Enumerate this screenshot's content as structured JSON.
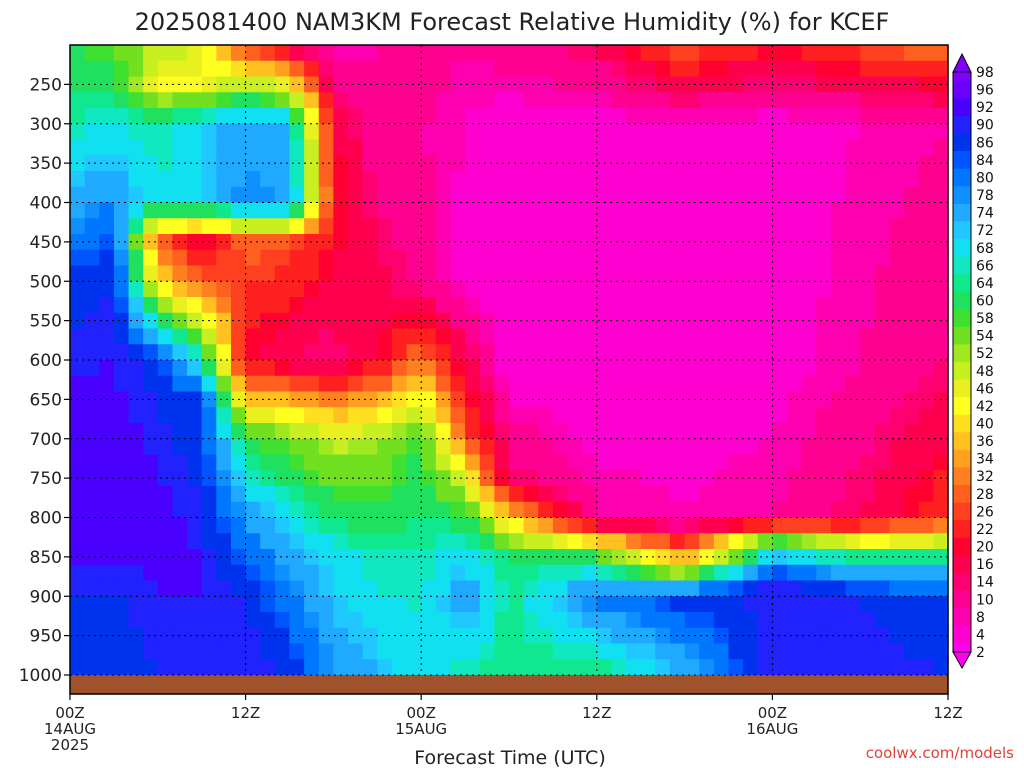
{
  "chart_data": {
    "type": "heatmap",
    "title": "2025081400 NAM3KM Forecast Relative Humidity (%) for KCEF",
    "xlabel": "Forecast Time (UTC)",
    "ylabel": "",
    "watermark": "coolwx.com/models",
    "y_ticks": [
      250,
      300,
      350,
      400,
      450,
      500,
      550,
      600,
      650,
      700,
      750,
      800,
      850,
      900,
      950,
      1000
    ],
    "y_range": [
      1000,
      200
    ],
    "x_range_hours": [
      0,
      60
    ],
    "x_ticks": [
      {
        "hour": 0,
        "lines": [
          "00Z",
          "14AUG",
          "2025"
        ]
      },
      {
        "hour": 12,
        "lines": [
          "12Z"
        ]
      },
      {
        "hour": 24,
        "lines": [
          "00Z",
          "15AUG"
        ]
      },
      {
        "hour": 36,
        "lines": [
          "12Z"
        ]
      },
      {
        "hour": 48,
        "lines": [
          "00Z",
          "16AUG"
        ]
      },
      {
        "hour": 60,
        "lines": [
          "12Z"
        ]
      }
    ],
    "grid": true,
    "colorbar_labels": [
      98,
      96,
      92,
      90,
      86,
      84,
      80,
      78,
      74,
      72,
      68,
      66,
      64,
      60,
      58,
      54,
      52,
      48,
      46,
      42,
      40,
      36,
      34,
      32,
      28,
      26,
      22,
      20,
      16,
      14,
      10,
      8,
      4,
      2
    ],
    "colorbar_colors": [
      "#7f00ff",
      "#6a00ff",
      "#4a00ff",
      "#2222ff",
      "#0033ee",
      "#0055ff",
      "#0077ff",
      "#1090ff",
      "#20aaff",
      "#20c8ff",
      "#10e0f0",
      "#10e8c0",
      "#10e890",
      "#20e060",
      "#40e030",
      "#70e020",
      "#a0e820",
      "#c8f020",
      "#e8f020",
      "#ffff20",
      "#ffe020",
      "#ffc020",
      "#ffa020",
      "#ff8020",
      "#ff6020",
      "#ff4020",
      "#ff2020",
      "#ff0030",
      "#ff0050",
      "#ff0070",
      "#ff0090",
      "#ff00b0",
      "#ff00d0",
      "#ff00f0"
    ],
    "rh_profiles": [
      {
        "hour": 0,
        "rh": [
          [
            200,
            60
          ],
          [
            300,
            66
          ],
          [
            400,
            74
          ],
          [
            500,
            88
          ],
          [
            700,
            94
          ],
          [
            850,
            92
          ],
          [
            1000,
            86
          ]
        ]
      },
      {
        "hour": 3,
        "rh": [
          [
            200,
            58
          ],
          [
            300,
            68
          ],
          [
            400,
            80
          ],
          [
            500,
            90
          ],
          [
            700,
            94
          ],
          [
            850,
            92
          ],
          [
            1000,
            86
          ]
        ]
      },
      {
        "hour": 6,
        "rh": [
          [
            200,
            52
          ],
          [
            250,
            44
          ],
          [
            300,
            66
          ],
          [
            400,
            68
          ],
          [
            450,
            30
          ],
          [
            500,
            40
          ],
          [
            600,
            88
          ],
          [
            800,
            94
          ],
          [
            1000,
            90
          ]
        ]
      },
      {
        "hour": 9,
        "rh": [
          [
            200,
            46
          ],
          [
            250,
            46
          ],
          [
            300,
            72
          ],
          [
            400,
            72
          ],
          [
            450,
            20
          ],
          [
            500,
            30
          ],
          [
            650,
            86
          ],
          [
            850,
            92
          ],
          [
            1000,
            92
          ]
        ]
      },
      {
        "hour": 12,
        "rh": [
          [
            200,
            26
          ],
          [
            300,
            76
          ],
          [
            400,
            80
          ],
          [
            450,
            30
          ],
          [
            600,
            20
          ],
          [
            700,
            60
          ],
          [
            800,
            78
          ],
          [
            900,
            90
          ],
          [
            1000,
            92
          ]
        ]
      },
      {
        "hour": 15,
        "rh": [
          [
            200,
            16
          ],
          [
            300,
            74
          ],
          [
            400,
            78
          ],
          [
            450,
            28
          ],
          [
            600,
            16
          ],
          [
            700,
            56
          ],
          [
            850,
            76
          ],
          [
            1000,
            90
          ]
        ]
      },
      {
        "hour": 18,
        "rh": [
          [
            200,
            8
          ],
          [
            300,
            20
          ],
          [
            400,
            24
          ],
          [
            600,
            14
          ],
          [
            700,
            50
          ],
          [
            850,
            70
          ],
          [
            1000,
            78
          ]
        ]
      },
      {
        "hour": 21,
        "rh": [
          [
            200,
            10
          ],
          [
            300,
            10
          ],
          [
            450,
            16
          ],
          [
            600,
            20
          ],
          [
            700,
            52
          ],
          [
            850,
            66
          ],
          [
            1000,
            74
          ]
        ]
      },
      {
        "hour": 24,
        "rh": [
          [
            200,
            14
          ],
          [
            300,
            10
          ],
          [
            500,
            12
          ],
          [
            600,
            32
          ],
          [
            700,
            60
          ],
          [
            850,
            66
          ],
          [
            1000,
            70
          ]
        ]
      },
      {
        "hour": 27,
        "rh": [
          [
            200,
            10
          ],
          [
            300,
            8
          ],
          [
            500,
            6
          ],
          [
            700,
            30
          ],
          [
            800,
            62
          ],
          [
            900,
            78
          ],
          [
            1000,
            66
          ]
        ]
      },
      {
        "hour": 30,
        "rh": [
          [
            200,
            12
          ],
          [
            300,
            6
          ],
          [
            600,
            4
          ],
          [
            750,
            16
          ],
          [
            850,
            64
          ],
          [
            1000,
            64
          ]
        ]
      },
      {
        "hour": 36,
        "rh": [
          [
            200,
            16
          ],
          [
            300,
            6
          ],
          [
            600,
            4
          ],
          [
            800,
            10
          ],
          [
            850,
            60
          ],
          [
            900,
            82
          ],
          [
            1000,
            62
          ]
        ]
      },
      {
        "hour": 42,
        "rh": [
          [
            200,
            30
          ],
          [
            300,
            8
          ],
          [
            600,
            6
          ],
          [
            800,
            8
          ],
          [
            860,
            40
          ],
          [
            900,
            88
          ],
          [
            1000,
            74
          ]
        ]
      },
      {
        "hour": 48,
        "rh": [
          [
            200,
            22
          ],
          [
            300,
            6
          ],
          [
            600,
            6
          ],
          [
            800,
            10
          ],
          [
            830,
            60
          ],
          [
            880,
            92
          ],
          [
            1000,
            92
          ]
        ]
      },
      {
        "hour": 54,
        "rh": [
          [
            200,
            28
          ],
          [
            300,
            8
          ],
          [
            600,
            10
          ],
          [
            800,
            16
          ],
          [
            850,
            64
          ],
          [
            900,
            90
          ],
          [
            1000,
            92
          ]
        ]
      },
      {
        "hour": 60,
        "rh": [
          [
            200,
            32
          ],
          [
            300,
            10
          ],
          [
            600,
            14
          ],
          [
            800,
            26
          ],
          [
            860,
            72
          ],
          [
            900,
            86
          ],
          [
            1000,
            90
          ]
        ]
      }
    ]
  },
  "colors": {
    "ground": "#a0522d",
    "text": "#222222",
    "watermark": "#e0403a"
  }
}
